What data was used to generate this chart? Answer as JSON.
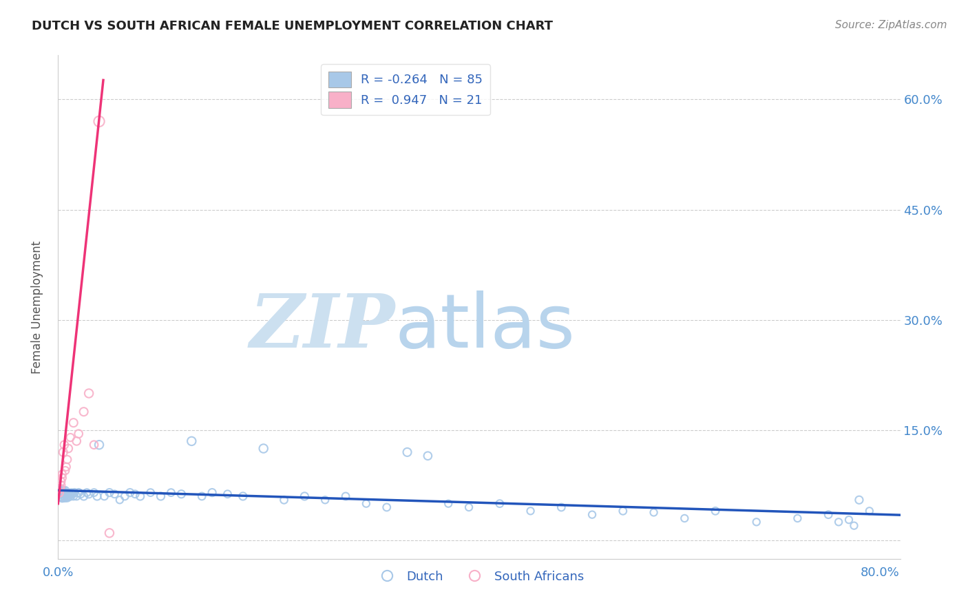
{
  "title": "DUTCH VS SOUTH AFRICAN FEMALE UNEMPLOYMENT CORRELATION CHART",
  "source": "Source: ZipAtlas.com",
  "ylabel": "Female Unemployment",
  "xlim": [
    0.0,
    0.82
  ],
  "ylim": [
    -0.025,
    0.66
  ],
  "ytick_positions": [
    0.0,
    0.15,
    0.3,
    0.45,
    0.6
  ],
  "ytick_labels": [
    "",
    "15.0%",
    "30.0%",
    "45.0%",
    "60.0%"
  ],
  "xtick_positions": [
    0.0,
    0.2,
    0.4,
    0.6,
    0.8
  ],
  "xtick_labels": [
    "0.0%",
    "",
    "",
    "",
    "80.0%"
  ],
  "dutch_R": -0.264,
  "dutch_N": 85,
  "sa_R": 0.947,
  "sa_N": 21,
  "dutch_scatter_color": "#a8c8e8",
  "dutch_line_color": "#2255bb",
  "sa_scatter_color": "#f8b0c8",
  "sa_line_color": "#ee3377",
  "watermark_zip_color": "#cce0f0",
  "watermark_atlas_color": "#b8d4ec",
  "grid_color": "#cccccc",
  "background_color": "#ffffff",
  "title_color": "#222222",
  "source_color": "#888888",
  "axis_tick_color": "#4488cc",
  "legend_text_color": "#3366bb",
  "dutch_x": [
    0.0005,
    0.001,
    0.001,
    0.002,
    0.002,
    0.002,
    0.003,
    0.003,
    0.003,
    0.004,
    0.004,
    0.004,
    0.005,
    0.005,
    0.005,
    0.006,
    0.006,
    0.007,
    0.007,
    0.007,
    0.008,
    0.008,
    0.009,
    0.009,
    0.01,
    0.01,
    0.011,
    0.012,
    0.013,
    0.014,
    0.015,
    0.016,
    0.018,
    0.02,
    0.022,
    0.025,
    0.028,
    0.03,
    0.035,
    0.038,
    0.04,
    0.045,
    0.05,
    0.055,
    0.06,
    0.065,
    0.07,
    0.075,
    0.08,
    0.09,
    0.1,
    0.11,
    0.12,
    0.13,
    0.14,
    0.15,
    0.165,
    0.18,
    0.2,
    0.22,
    0.24,
    0.26,
    0.28,
    0.3,
    0.32,
    0.34,
    0.36,
    0.38,
    0.4,
    0.43,
    0.46,
    0.49,
    0.52,
    0.55,
    0.58,
    0.61,
    0.64,
    0.68,
    0.72,
    0.75,
    0.76,
    0.77,
    0.775,
    0.78,
    0.79
  ],
  "dutch_y": [
    0.065,
    0.065,
    0.07,
    0.06,
    0.065,
    0.07,
    0.06,
    0.065,
    0.07,
    0.058,
    0.063,
    0.068,
    0.058,
    0.063,
    0.068,
    0.06,
    0.065,
    0.058,
    0.063,
    0.068,
    0.06,
    0.065,
    0.058,
    0.063,
    0.06,
    0.065,
    0.063,
    0.06,
    0.065,
    0.063,
    0.06,
    0.065,
    0.06,
    0.065,
    0.063,
    0.06,
    0.065,
    0.063,
    0.065,
    0.06,
    0.13,
    0.06,
    0.065,
    0.063,
    0.055,
    0.06,
    0.065,
    0.063,
    0.06,
    0.065,
    0.06,
    0.065,
    0.063,
    0.135,
    0.06,
    0.065,
    0.063,
    0.06,
    0.125,
    0.055,
    0.06,
    0.055,
    0.06,
    0.05,
    0.045,
    0.12,
    0.115,
    0.05,
    0.045,
    0.05,
    0.04,
    0.045,
    0.035,
    0.04,
    0.038,
    0.03,
    0.04,
    0.025,
    0.03,
    0.035,
    0.025,
    0.028,
    0.02,
    0.055,
    0.04
  ],
  "dutch_sizes": [
    150,
    100,
    80,
    100,
    80,
    70,
    80,
    70,
    65,
    80,
    70,
    65,
    70,
    65,
    60,
    70,
    65,
    70,
    65,
    60,
    65,
    60,
    65,
    60,
    65,
    60,
    60,
    65,
    60,
    65,
    60,
    65,
    60,
    65,
    60,
    65,
    60,
    65,
    60,
    65,
    80,
    60,
    65,
    60,
    55,
    60,
    65,
    60,
    65,
    60,
    65,
    60,
    65,
    80,
    60,
    65,
    60,
    65,
    80,
    60,
    65,
    55,
    60,
    55,
    60,
    75,
    70,
    55,
    55,
    60,
    55,
    60,
    55,
    60,
    55,
    55,
    60,
    55,
    55,
    60,
    55,
    55,
    55,
    65,
    55
  ],
  "sa_x": [
    0.001,
    0.002,
    0.003,
    0.003,
    0.004,
    0.004,
    0.005,
    0.006,
    0.007,
    0.008,
    0.009,
    0.01,
    0.012,
    0.015,
    0.018,
    0.02,
    0.025,
    0.03,
    0.035,
    0.04,
    0.05
  ],
  "sa_y": [
    0.065,
    0.07,
    0.075,
    0.08,
    0.085,
    0.09,
    0.12,
    0.13,
    0.095,
    0.1,
    0.11,
    0.125,
    0.14,
    0.16,
    0.135,
    0.145,
    0.175,
    0.2,
    0.13,
    0.57,
    0.01
  ],
  "sa_sizes": [
    80,
    70,
    65,
    65,
    65,
    65,
    75,
    70,
    65,
    65,
    65,
    70,
    65,
    75,
    70,
    70,
    75,
    80,
    70,
    120,
    80
  ]
}
